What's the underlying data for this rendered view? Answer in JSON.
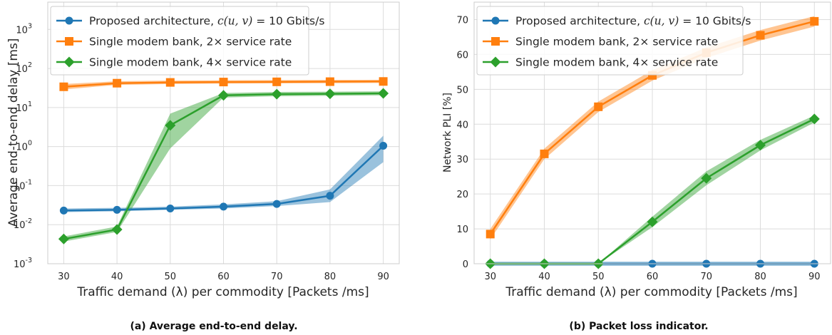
{
  "chart_data": [
    {
      "id": "a",
      "type": "line",
      "caption": "(a) Average end-to-end delay.",
      "xlabel": "Traffic demand (λ) per commodity [Packets /ms]",
      "ylabel": "Average end-to-end delay [ms]",
      "yscale": "log",
      "x": [
        30,
        40,
        50,
        60,
        70,
        80,
        90
      ],
      "xlim": [
        27,
        93
      ],
      "ylim": [
        0.001,
        5000
      ],
      "xticks": [
        "30",
        "40",
        "50",
        "60",
        "70",
        "80",
        "90"
      ],
      "yticks": [
        {
          "value": 0.001,
          "base": "10",
          "exp": "-3"
        },
        {
          "value": 0.01,
          "base": "10",
          "exp": "-2"
        },
        {
          "value": 0.1,
          "base": "10",
          "exp": "-1"
        },
        {
          "value": 1,
          "base": "10",
          "exp": "0"
        },
        {
          "value": 10,
          "base": "10",
          "exp": "1"
        },
        {
          "value": 100,
          "base": "10",
          "exp": "2"
        },
        {
          "value": 1000,
          "base": "10",
          "exp": "3"
        }
      ],
      "grid": true,
      "legend": "upper-left",
      "series": [
        {
          "key": "s1",
          "values": [
            0.023,
            0.024,
            0.026,
            0.029,
            0.034,
            0.055,
            1.05
          ],
          "lower": [
            0.021,
            0.022,
            0.024,
            0.026,
            0.03,
            0.038,
            0.4
          ],
          "upper": [
            0.026,
            0.027,
            0.029,
            0.033,
            0.04,
            0.08,
            1.9
          ],
          "color": "#1f77b4",
          "marker": "circle"
        },
        {
          "key": "s2",
          "values": [
            34,
            42,
            44,
            45,
            45.5,
            46,
            46.5
          ],
          "lower": [
            29,
            38,
            40,
            41,
            41.5,
            42,
            42.5
          ],
          "upper": [
            40,
            47,
            49,
            50,
            50.5,
            51,
            51.5
          ],
          "color": "#ff7f0e",
          "marker": "square"
        },
        {
          "key": "s3",
          "values": [
            0.0043,
            0.0075,
            3.5,
            20.5,
            22,
            22.5,
            23
          ],
          "lower": [
            0.0037,
            0.0065,
            0.9,
            18.0,
            19.5,
            20.0,
            20.5
          ],
          "upper": [
            0.005,
            0.009,
            7.0,
            23.5,
            25.0,
            25.5,
            26.0
          ],
          "color": "#2ca02c",
          "marker": "diamond"
        }
      ]
    },
    {
      "id": "b",
      "type": "line",
      "caption": "(b) Packet loss indicator.",
      "xlabel": "Traffic demand (λ) per commodity [Packets /ms]",
      "ylabel": "Network PLI [%]",
      "yscale": "linear",
      "x": [
        30,
        40,
        50,
        60,
        70,
        80,
        90
      ],
      "xlim": [
        27,
        93
      ],
      "ylim": [
        0,
        75
      ],
      "xticks": [
        "30",
        "40",
        "50",
        "60",
        "70",
        "80",
        "90"
      ],
      "yticks": [
        {
          "value": 0,
          "label": "0"
        },
        {
          "value": 10,
          "label": "10"
        },
        {
          "value": 20,
          "label": "20"
        },
        {
          "value": 30,
          "label": "30"
        },
        {
          "value": 40,
          "label": "40"
        },
        {
          "value": 50,
          "label": "50"
        },
        {
          "value": 60,
          "label": "60"
        },
        {
          "value": 70,
          "label": "70"
        }
      ],
      "grid": true,
      "legend": "upper-left",
      "series": [
        {
          "key": "s1",
          "values": [
            0,
            0,
            0,
            0,
            0,
            0,
            0
          ],
          "lower": [
            -0.6,
            -0.6,
            -0.6,
            -0.6,
            -0.6,
            -0.6,
            -0.6
          ],
          "upper": [
            0.6,
            0.6,
            0.6,
            0.6,
            0.6,
            0.6,
            0.6
          ],
          "color": "#1f77b4",
          "marker": "circle"
        },
        {
          "key": "s2",
          "values": [
            8.5,
            31.5,
            45,
            54,
            60.5,
            65.5,
            69.5
          ],
          "lower": [
            7.0,
            30.0,
            43.5,
            52.5,
            59.0,
            64.0,
            68.0
          ],
          "upper": [
            10.0,
            33.0,
            46.5,
            55.5,
            62.0,
            67.0,
            71.0
          ],
          "color": "#ff7f0e",
          "marker": "square"
        },
        {
          "key": "s3",
          "values": [
            0,
            0,
            0,
            12,
            24.5,
            34,
            41.5
          ],
          "lower": [
            0,
            0,
            0,
            10.5,
            22.5,
            32.5,
            40.5
          ],
          "upper": [
            0,
            0,
            0,
            13.5,
            26.5,
            35.5,
            42.5
          ],
          "color": "#2ca02c",
          "marker": "diamond"
        }
      ]
    }
  ],
  "legend_entries": {
    "s1": {
      "text": "Proposed architecture, ",
      "math_c": "c",
      "math_args": "(u, v)",
      "math_rest": " = 10 Gbits/s",
      "color": "#1f77b4",
      "marker": "circle"
    },
    "s2": {
      "text": "Single modem bank, 2× service rate",
      "color": "#ff7f0e",
      "marker": "square"
    },
    "s3": {
      "text": "Single modem bank, 4× service rate",
      "color": "#2ca02c",
      "marker": "diamond"
    }
  }
}
